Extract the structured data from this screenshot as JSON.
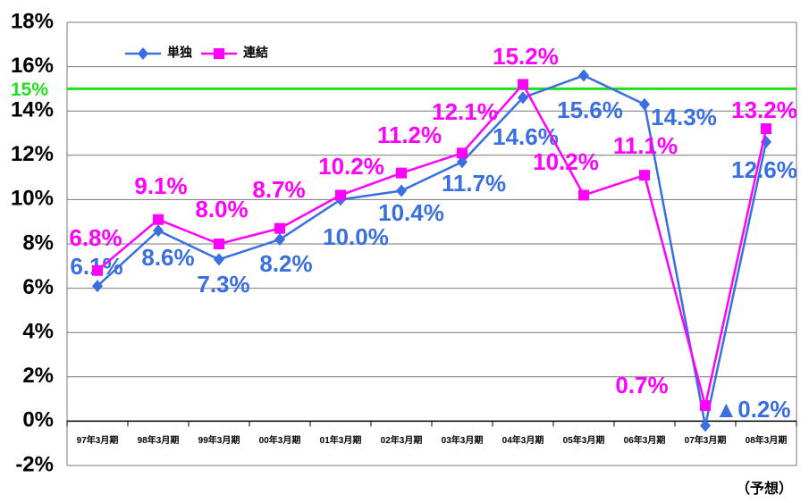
{
  "chart_data": {
    "type": "line",
    "categories": [
      "97年3月期",
      "98年3月期",
      "99年3月期",
      "00年3月期",
      "01年3月期",
      "02年3月期",
      "03年3月期",
      "04年3月期",
      "05年3月期",
      "06年3月期",
      "07年3月期",
      "08年3月期"
    ],
    "series": [
      {
        "name": "単独",
        "color": "#3a6fe0",
        "marker": "diamond",
        "values": [
          6.1,
          8.6,
          7.3,
          8.2,
          10.0,
          10.4,
          11.7,
          14.6,
          15.6,
          14.3,
          -0.2,
          12.6
        ],
        "value_labels": [
          "6.1%",
          "8.6%",
          "7.3%",
          "8.2%",
          "10.0%",
          "10.4%",
          "11.7%",
          "14.6%",
          "15.6%",
          "14.3%",
          "▲0.2%",
          "12.6%"
        ]
      },
      {
        "name": "連結",
        "color": "#ff00ff",
        "marker": "square",
        "values": [
          6.8,
          9.1,
          8.0,
          8.7,
          10.2,
          11.2,
          12.1,
          15.2,
          10.2,
          11.1,
          0.7,
          13.2
        ],
        "value_labels": [
          "6.8%",
          "9.1%",
          "8.0%",
          "8.7%",
          "10.2%",
          "11.2%",
          "12.1%",
          "15.2%",
          "10.2%",
          "11.1%",
          "0.7%",
          "13.2%"
        ]
      }
    ],
    "ylim": [
      -2,
      18
    ],
    "yticks": [
      {
        "value": -2,
        "label": "-2%"
      },
      {
        "value": 0,
        "label": "0%"
      },
      {
        "value": 2,
        "label": "2%"
      },
      {
        "value": 4,
        "label": "4%"
      },
      {
        "value": 6,
        "label": "6%"
      },
      {
        "value": 8,
        "label": "8%"
      },
      {
        "value": 10,
        "label": "10%"
      },
      {
        "value": 12,
        "label": "12%"
      },
      {
        "value": 14,
        "label": "14%"
      },
      {
        "value": 16,
        "label": "16%"
      },
      {
        "value": 18,
        "label": "18%"
      }
    ],
    "reference_line": {
      "value": 15,
      "label": "15%",
      "color": "#22dd22"
    },
    "annotation": "（予想）",
    "grid": true,
    "legend": "upper left"
  }
}
